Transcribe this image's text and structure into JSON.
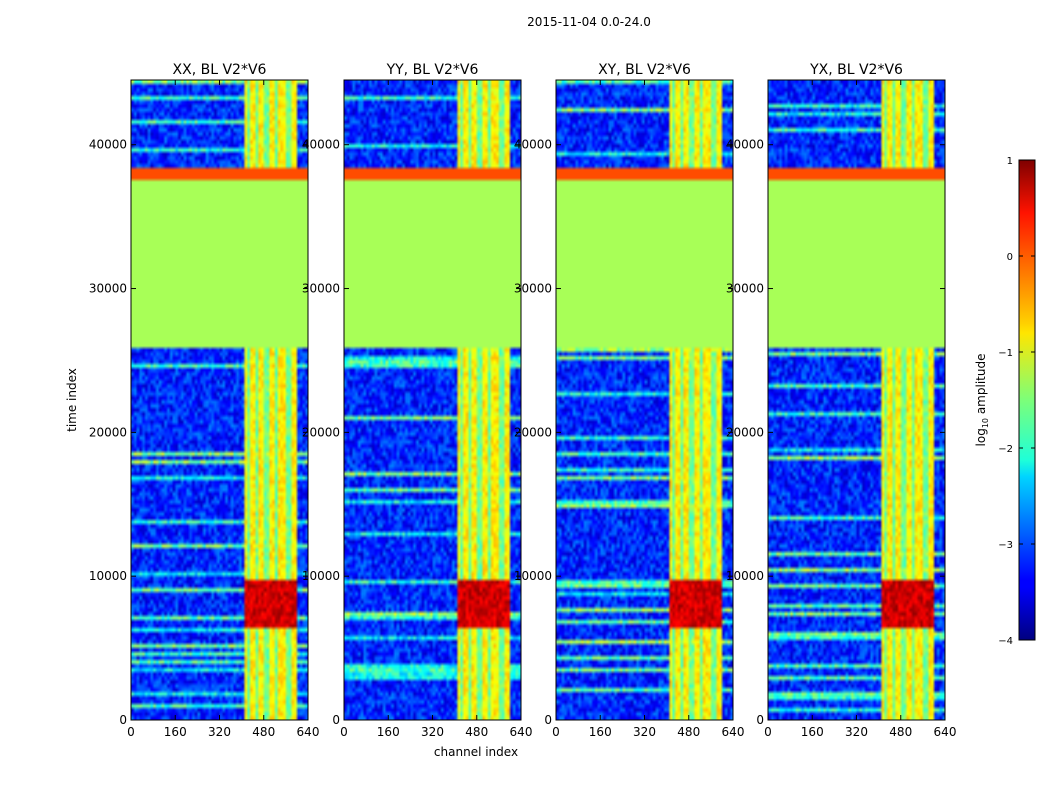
{
  "chart_data": {
    "type": "heatmap",
    "suptitle": "2015-11-04 0.0-24.0",
    "xlabel": "channel index",
    "ylabel": "time index",
    "xlim": [
      0,
      640
    ],
    "ylim": [
      0,
      44500
    ],
    "xticks": [
      "0",
      "160",
      "320",
      "480",
      "640"
    ],
    "xtick_values": [
      0,
      160,
      320,
      480,
      640
    ],
    "yticks": [
      "0",
      "10000",
      "20000",
      "30000",
      "40000"
    ],
    "ytick_values": [
      0,
      10000,
      20000,
      30000,
      40000
    ],
    "colormap": "jet",
    "colorbar": {
      "label": "log10 amplitude",
      "label_base": "log",
      "label_sub": "10",
      "label_rest": " amplitude",
      "vmin": -4,
      "vmax": 1,
      "ticks": [
        "1",
        "0",
        "−1",
        "−2",
        "−3",
        "−4"
      ],
      "tick_values": [
        1,
        0,
        -1,
        -2,
        -3,
        -4
      ]
    },
    "series": [
      {
        "name": "XX",
        "title": "XX, BL V2*V6"
      },
      {
        "name": "YY",
        "title": "YY, BL V2*V6"
      },
      {
        "name": "XY",
        "title": "XY, BL V2*V6"
      },
      {
        "name": "YX",
        "title": "YX, BL V2*V6"
      }
    ],
    "constant_block": {
      "time_range": [
        26000,
        37600
      ],
      "value": -1.3
    },
    "edge_band": {
      "time_range": [
        37600,
        38300
      ],
      "value": 0.0
    },
    "bright_channels": [
      410,
      440,
      470,
      510,
      545,
      590
    ],
    "background_level": -3.2
  }
}
